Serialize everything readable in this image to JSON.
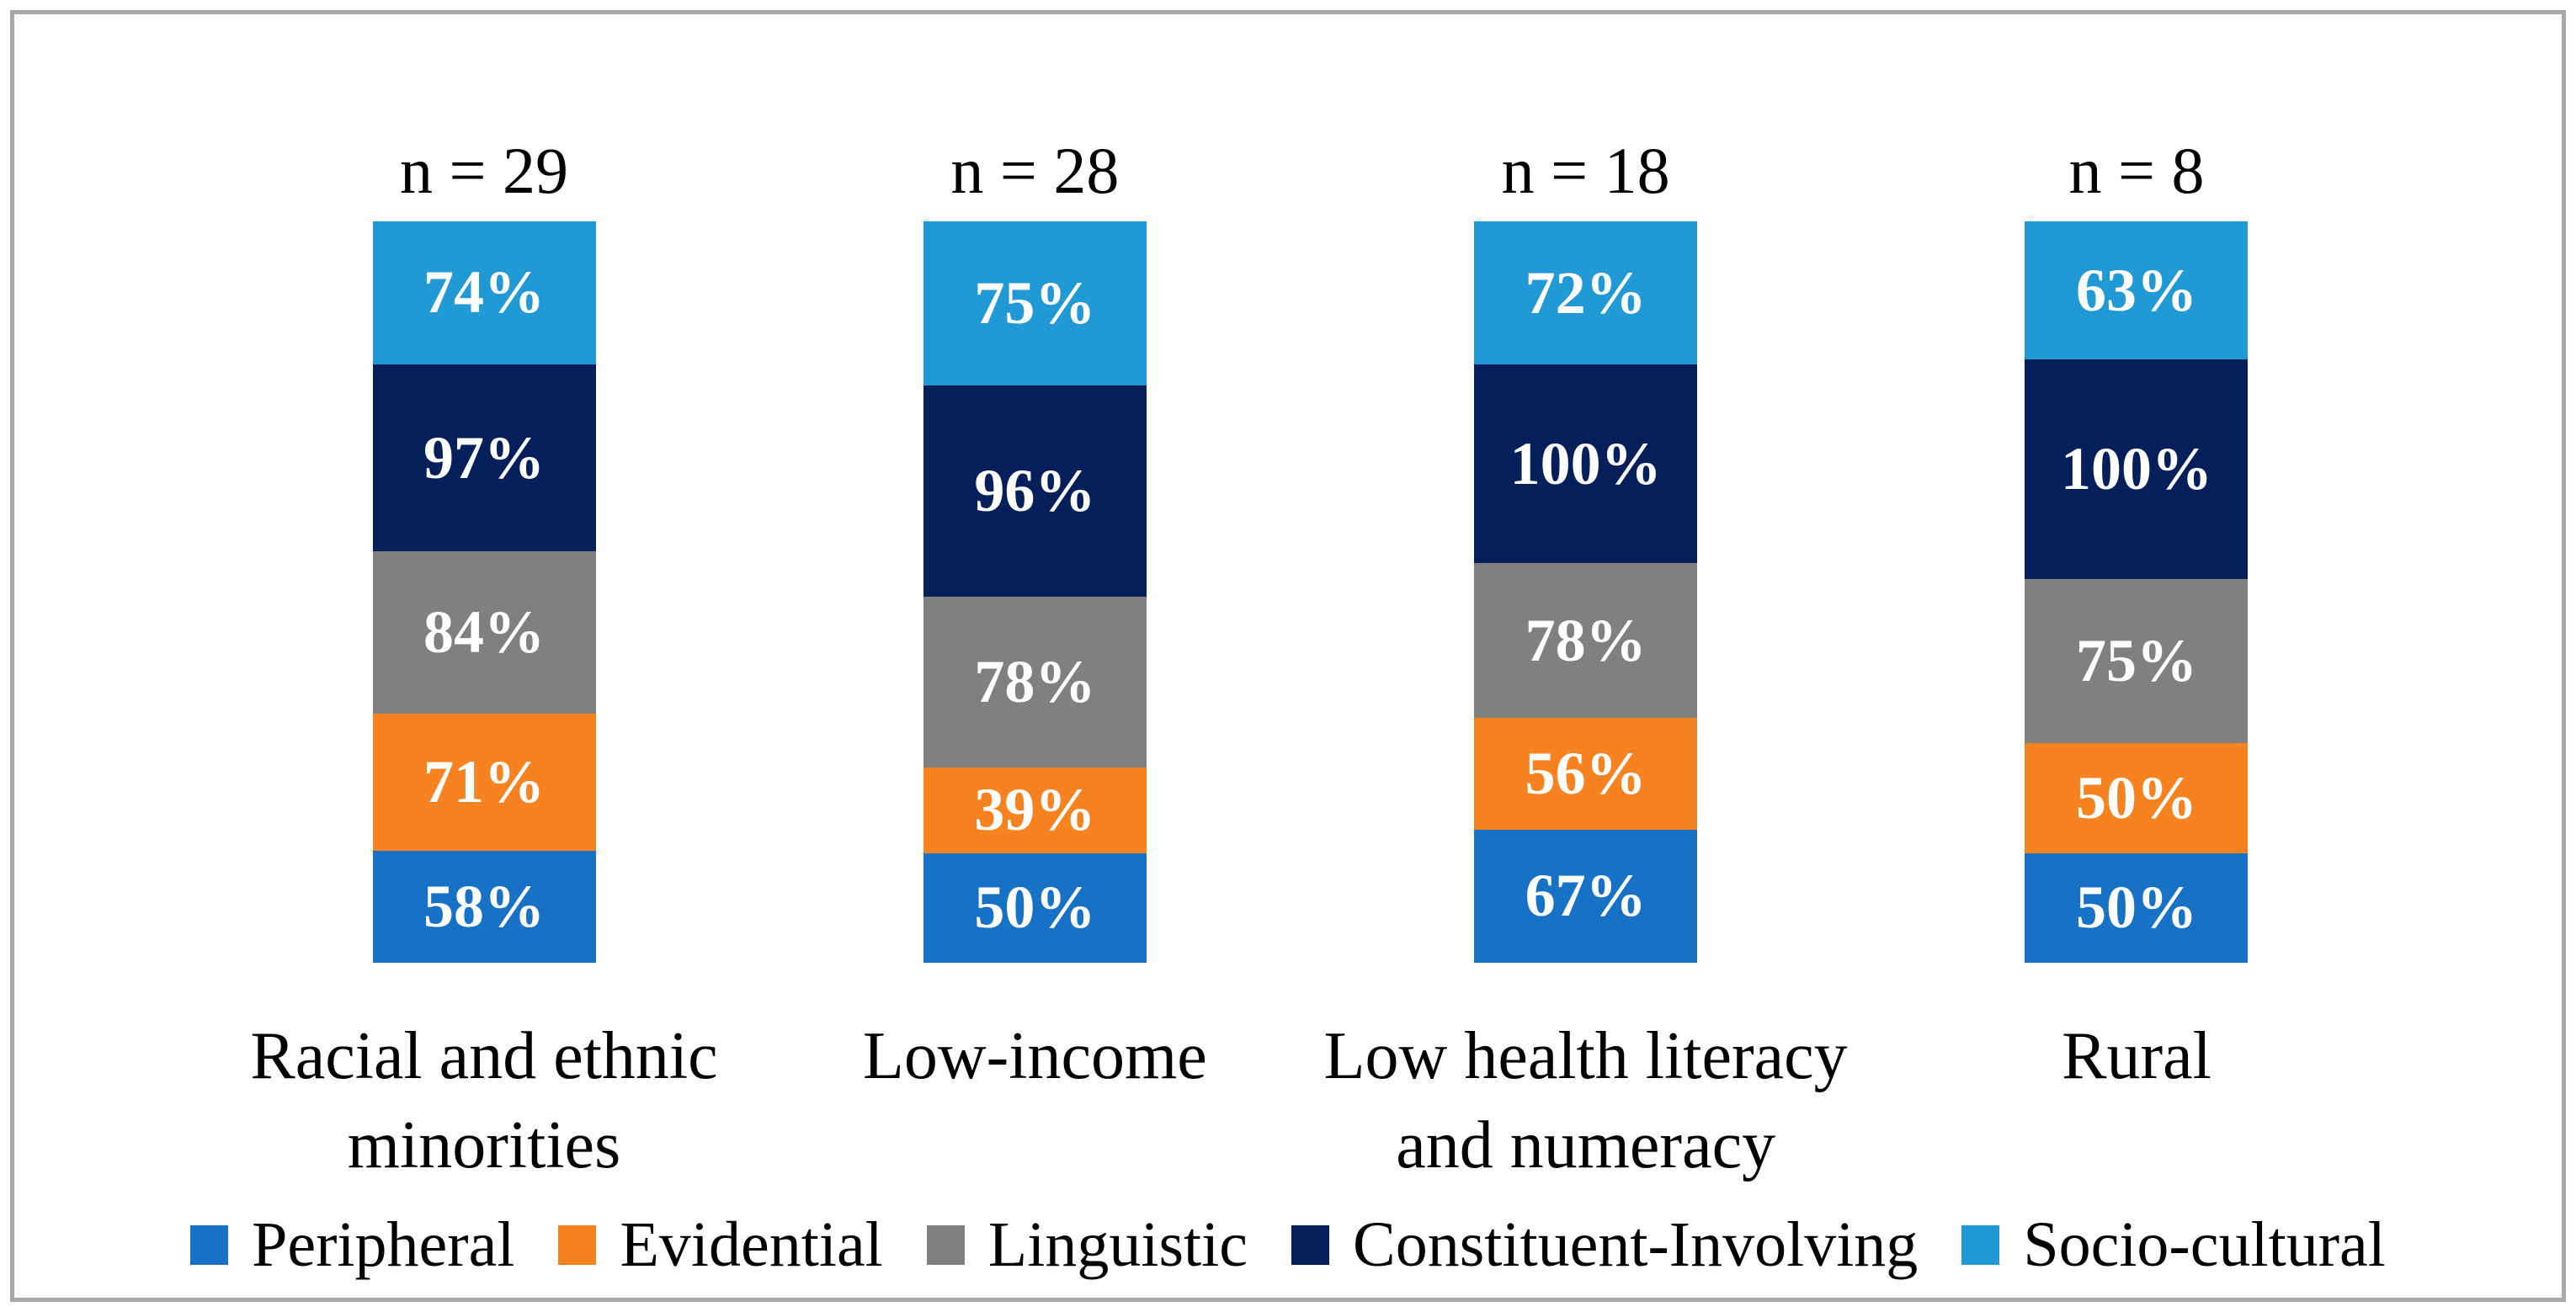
{
  "figure": {
    "background": "#ffffff",
    "frame_border_color": "#aca7a7",
    "text_color": "#000000",
    "value_label_color": "#ffffff"
  },
  "chart_data": {
    "type": "bar",
    "variant": "100-percent-stacked-vertical",
    "title": "",
    "xlabel": "",
    "ylabel": "",
    "grid": false,
    "legend_position": "bottom",
    "value_suffix": "%",
    "categories": [
      "Racial and ethnic minorities",
      "Low-income",
      "Low health literacy and numeracy",
      "Rural"
    ],
    "category_label_lines": [
      [
        "Racial and ethnic",
        "minorities"
      ],
      [
        "Low-income"
      ],
      [
        "Low health literacy",
        "and numeracy"
      ],
      [
        "Rural"
      ]
    ],
    "n_labels": [
      "n = 29",
      "n = 28",
      "n = 18",
      "n = 8"
    ],
    "sample_sizes": [
      29,
      28,
      18,
      8
    ],
    "stack_order": "bottom-to-top in series order",
    "series": [
      {
        "name": "Peripheral",
        "color": "#1772c6",
        "values": [
          58,
          50,
          67,
          50
        ],
        "labels": [
          "58%",
          "50%",
          "67%",
          "50%"
        ]
      },
      {
        "name": "Evidential",
        "color": "#f68220",
        "values": [
          71,
          39,
          56,
          50
        ],
        "labels": [
          "71%",
          "39%",
          "56%",
          "50%"
        ]
      },
      {
        "name": "Linguistic",
        "color": "#808080",
        "values": [
          84,
          78,
          78,
          75
        ],
        "labels": [
          "84%",
          "78%",
          "78%",
          "75%"
        ]
      },
      {
        "name": "Constituent-Involving",
        "color": "#041f5a",
        "values": [
          97,
          96,
          100,
          100
        ],
        "labels": [
          "97%",
          "96%",
          "100%",
          "100%"
        ]
      },
      {
        "name": "Socio-cultural",
        "color": "#2099d5",
        "values": [
          74,
          75,
          72,
          63
        ],
        "labels": [
          "74%",
          "75%",
          "72%",
          "63%"
        ]
      }
    ],
    "legend_entries": [
      "Peripheral",
      "Evidential",
      "Linguistic",
      "Constituent-Involving",
      "Socio-cultural"
    ]
  }
}
